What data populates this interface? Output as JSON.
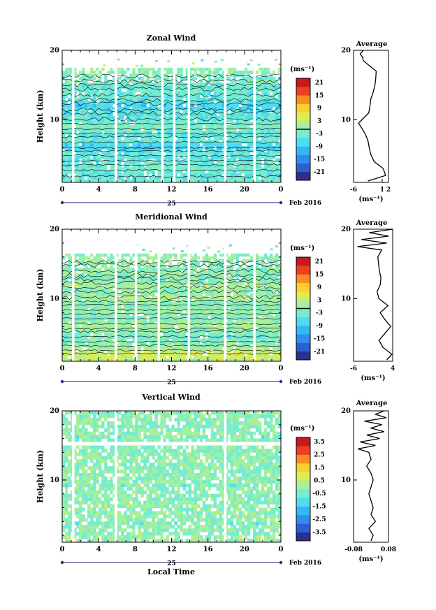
{
  "x_label": "Local Time",
  "date_label": "Feb 2016",
  "day_label": "25",
  "colorbar_unit": "(ms⁻¹)",
  "avg_title": "Average",
  "avg_unit": "(ms⁻¹)",
  "y_label": "Height (km)",
  "colors": {
    "colormap": [
      "#2b2f8f",
      "#2e5fd1",
      "#2e8ef0",
      "#33b8f5",
      "#4fdcef",
      "#77eccf",
      "#a6ef9c",
      "#dcec55",
      "#fbcf2f",
      "#fb8c25",
      "#ef3f20",
      "#c71a1c"
    ],
    "background": "#ffffff",
    "axis": "#000000",
    "gap_line": "#ffffff"
  },
  "chart_data": [
    {
      "type": "heatmap",
      "title": "Zonal Wind",
      "ylabel": "Height (km)",
      "xlabel": "",
      "x_ticks": [
        "0",
        "4",
        "8",
        "12",
        "16",
        "20",
        "0"
      ],
      "y_ticks": [
        "10",
        "20"
      ],
      "xlim": [
        0,
        24
      ],
      "ylim": [
        1,
        20
      ],
      "data_top_km": 17.5,
      "colorbar": {
        "range": [
          -24,
          24
        ],
        "tick_labels": [
          "21",
          "15",
          "9",
          "3",
          "-3",
          "-9",
          "-15",
          "-21"
        ],
        "zero_line": true
      },
      "gaps_hours": [
        1.2,
        5.9,
        11.0,
        12.3,
        13.9,
        17.9,
        21.1
      ],
      "profile_rows": [
        -2,
        -3,
        -4,
        -3,
        -2,
        -3,
        -3,
        -4,
        -4,
        -3,
        -5,
        -7,
        -6,
        -4,
        -3,
        -4,
        -3,
        -2,
        -1,
        -2,
        -3,
        -4,
        -5,
        -4,
        -6,
        -7,
        -5,
        -4,
        -3,
        -3,
        -2,
        -3,
        -2,
        -1,
        -2,
        -1,
        0,
        1
      ],
      "average_profile": {
        "xlim": [
          -6,
          2.5
        ],
        "x_ticks": [
          "-6",
          "1",
          "2"
        ],
        "y_ticks": [
          "10",
          "20"
        ],
        "heights_km": [
          1.2,
          2,
          3,
          4,
          5,
          6,
          7,
          8,
          9,
          9.5,
          10,
          11,
          12,
          13,
          14,
          15,
          16,
          17,
          18,
          18.5,
          19,
          19.5,
          20
        ],
        "values": [
          -2.5,
          1.8,
          1.2,
          -1.0,
          -1.8,
          -2.2,
          -2.5,
          -3.2,
          -4.2,
          -4.8,
          -4.0,
          -2.3,
          -2.0,
          -1.8,
          -1.2,
          -0.8,
          -0.6,
          -0.5,
          -2.6,
          -3.6,
          -3.8,
          -4.4,
          -3.6
        ]
      }
    },
    {
      "type": "heatmap",
      "title": "Meridional Wind",
      "ylabel": "Height (km)",
      "xlabel": "",
      "x_ticks": [
        "0",
        "4",
        "8",
        "12",
        "16",
        "20",
        "0"
      ],
      "y_ticks": [
        "10",
        "20"
      ],
      "xlim": [
        0,
        24
      ],
      "ylim": [
        1,
        20
      ],
      "data_top_km": 16.5,
      "colorbar": {
        "range": [
          -24,
          24
        ],
        "tick_labels": [
          "21",
          "15",
          "9",
          "3",
          "-3",
          "-9",
          "-15",
          "-21"
        ],
        "zero_line": true
      },
      "gaps_hours": [
        1.2,
        5.9,
        8.1,
        10.6,
        13.9,
        17.9,
        21.1
      ],
      "profile_rows": [
        3,
        5,
        6,
        4,
        2,
        1,
        0,
        -1,
        -2,
        -1,
        0,
        1,
        2,
        1,
        0,
        -1,
        0,
        1,
        0,
        -1,
        0,
        1,
        2,
        1,
        0,
        1,
        2,
        1,
        0,
        -1,
        0,
        1,
        0,
        -1,
        0,
        0,
        1,
        0
      ],
      "average_profile": {
        "xlim": [
          -6,
          4
        ],
        "x_ticks": [
          "-6",
          "4"
        ],
        "y_ticks": [
          "10",
          "20"
        ],
        "heights_km": [
          1.2,
          2,
          3,
          4,
          5,
          6,
          7,
          8,
          9,
          10,
          11,
          12,
          13,
          14,
          15,
          16,
          17,
          17.5,
          18,
          18.5,
          19,
          19.5,
          20
        ],
        "values": [
          2.5,
          3.8,
          1.5,
          0.5,
          2.0,
          3.5,
          2.0,
          0.8,
          2.8,
          0.5,
          0.0,
          0.8,
          1.0,
          0.6,
          0.4,
          0.2,
          1.2,
          -5.0,
          2.5,
          -4.0,
          3.0,
          -2.0,
          4.0
        ]
      }
    },
    {
      "type": "heatmap",
      "title": "Vertical Wind",
      "ylabel": "Height (km)",
      "xlabel": "Local Time",
      "x_ticks": [
        "0",
        "4",
        "8",
        "12",
        "16",
        "20",
        "0"
      ],
      "y_ticks": [
        "10",
        "20"
      ],
      "xlim": [
        0,
        24
      ],
      "ylim": [
        1,
        20
      ],
      "data_top_km": 20,
      "colorbar": {
        "range": [
          -4,
          4
        ],
        "tick_labels": [
          "3.5",
          "2.5",
          "1.5",
          "0.5",
          "-0.5",
          "-1.5",
          "-2.5",
          "-3.5"
        ],
        "zero_line": false
      },
      "gaps_hours": [
        1.2,
        5.9,
        17.9
      ],
      "profile_rows": [
        0,
        0.2,
        -0.1,
        0,
        0.1,
        -0.2,
        0,
        0.1,
        0,
        -0.1,
        0.2,
        0,
        -0.1,
        0,
        0.1,
        0,
        -0.2,
        0,
        0.1,
        0,
        0,
        -0.1,
        0.1,
        0,
        0,
        0.1,
        -0.1,
        0,
        0.2,
        0,
        -0.2,
        0.1,
        0,
        -0.1,
        0,
        0.1,
        0,
        0
      ],
      "average_profile": {
        "xlim": [
          -0.08,
          0.08
        ],
        "x_ticks": [
          "-0.08",
          "0.08"
        ],
        "y_ticks": [
          "10",
          "20"
        ],
        "heights_km": [
          1.2,
          2,
          3,
          4,
          5,
          6,
          7,
          8,
          9,
          10,
          11,
          12,
          13,
          14,
          14.5,
          15,
          15.5,
          16,
          16.5,
          17,
          17.5,
          18,
          18.5,
          19,
          19.5,
          20
        ],
        "values": [
          0.0,
          0.01,
          -0.01,
          0.02,
          0.0,
          0.01,
          0.0,
          -0.01,
          0.0,
          0.01,
          0.0,
          -0.02,
          0.0,
          -0.01,
          -0.06,
          0.02,
          -0.05,
          0.04,
          -0.02,
          0.06,
          0.0,
          0.05,
          -0.03,
          0.07,
          0.02,
          0.06
        ]
      }
    }
  ]
}
